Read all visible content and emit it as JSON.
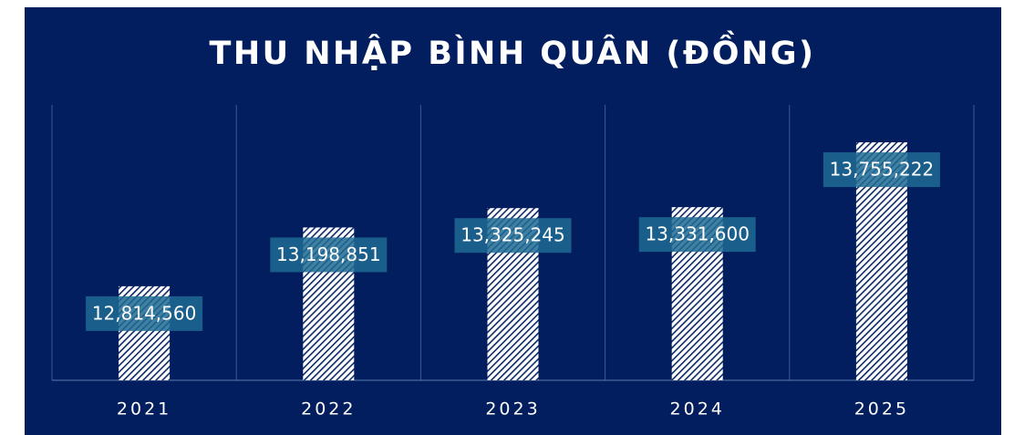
{
  "chart_data": {
    "type": "bar",
    "title": "THU NHẬP BÌNH QUÂN (ĐỒNG)",
    "categories": [
      "2021",
      "2022",
      "2023",
      "2024",
      "2025"
    ],
    "values": [
      12814560,
      13198851,
      13325245,
      13331600,
      13755222
    ],
    "value_labels": [
      "12,814,560",
      "13,198,851",
      "13,325,245",
      "13,331,600",
      "13,755,222"
    ],
    "color": "#ffffff",
    "ylim": [
      12200000,
      14000000
    ]
  }
}
